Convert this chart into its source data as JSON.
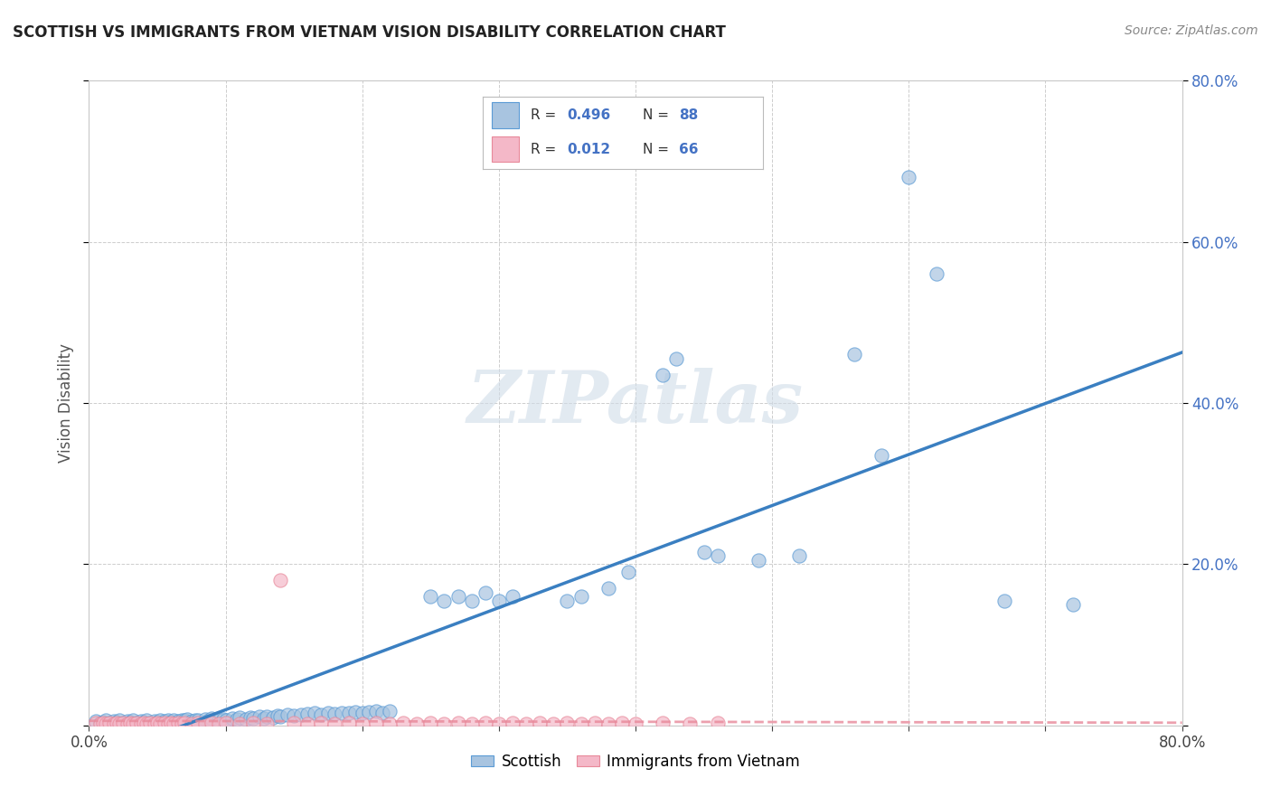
{
  "title": "SCOTTISH VS IMMIGRANTS FROM VIETNAM VISION DISABILITY CORRELATION CHART",
  "source": "Source: ZipAtlas.com",
  "ylabel": "Vision Disability",
  "legend_label_1": "Scottish",
  "legend_label_2": "Immigrants from Vietnam",
  "r1_text": "0.496",
  "n1_text": "88",
  "r2_text": "0.012",
  "n2_text": "66",
  "xlim": [
    0.0,
    0.8
  ],
  "ylim": [
    0.0,
    0.8
  ],
  "color_scottish_fill": "#a8c4e0",
  "color_scottish_edge": "#5b9bd5",
  "color_vietnam_fill": "#f4b8c8",
  "color_vietnam_edge": "#e8899a",
  "color_trend_scottish": "#3a7fc1",
  "color_trend_vietnam": "#e8899a",
  "background_color": "#ffffff",
  "grid_color": "#c8c8c8",
  "watermark_color": "#d0dce8",
  "title_color": "#222222",
  "source_color": "#888888",
  "ylabel_color": "#555555",
  "tick_color": "#4472c4",
  "legend_text_color": "#333333",
  "legend_value_color": "#4472c4",
  "scottish_x": [
    0.005,
    0.008,
    0.01,
    0.012,
    0.015,
    0.018,
    0.02,
    0.022,
    0.025,
    0.028,
    0.03,
    0.032,
    0.035,
    0.038,
    0.04,
    0.042,
    0.045,
    0.048,
    0.05,
    0.052,
    0.055,
    0.058,
    0.06,
    0.062,
    0.065,
    0.068,
    0.07,
    0.072,
    0.075,
    0.078,
    0.08,
    0.085,
    0.088,
    0.09,
    0.095,
    0.098,
    0.1,
    0.105,
    0.108,
    0.11,
    0.115,
    0.118,
    0.12,
    0.125,
    0.128,
    0.13,
    0.135,
    0.138,
    0.14,
    0.145,
    0.15,
    0.155,
    0.16,
    0.165,
    0.17,
    0.175,
    0.18,
    0.185,
    0.19,
    0.195,
    0.2,
    0.205,
    0.21,
    0.215,
    0.22,
    0.25,
    0.26,
    0.27,
    0.28,
    0.29,
    0.3,
    0.31,
    0.35,
    0.36,
    0.38,
    0.395,
    0.42,
    0.43,
    0.45,
    0.46,
    0.49,
    0.52,
    0.56,
    0.58,
    0.6,
    0.62,
    0.67,
    0.72
  ],
  "scottish_y": [
    0.005,
    0.003,
    0.004,
    0.006,
    0.003,
    0.005,
    0.004,
    0.006,
    0.003,
    0.005,
    0.004,
    0.006,
    0.003,
    0.005,
    0.004,
    0.007,
    0.003,
    0.005,
    0.004,
    0.006,
    0.005,
    0.007,
    0.004,
    0.006,
    0.005,
    0.007,
    0.006,
    0.008,
    0.005,
    0.007,
    0.006,
    0.008,
    0.007,
    0.009,
    0.006,
    0.008,
    0.007,
    0.009,
    0.008,
    0.01,
    0.008,
    0.01,
    0.009,
    0.011,
    0.009,
    0.011,
    0.01,
    0.012,
    0.011,
    0.013,
    0.012,
    0.013,
    0.014,
    0.015,
    0.013,
    0.015,
    0.014,
    0.016,
    0.015,
    0.017,
    0.016,
    0.017,
    0.018,
    0.015,
    0.018,
    0.16,
    0.155,
    0.16,
    0.155,
    0.165,
    0.155,
    0.16,
    0.155,
    0.16,
    0.17,
    0.19,
    0.435,
    0.455,
    0.215,
    0.21,
    0.205,
    0.21,
    0.46,
    0.335,
    0.68,
    0.56,
    0.155,
    0.15
  ],
  "vietnam_x": [
    0.005,
    0.008,
    0.01,
    0.012,
    0.015,
    0.018,
    0.02,
    0.022,
    0.025,
    0.028,
    0.03,
    0.032,
    0.035,
    0.038,
    0.04,
    0.042,
    0.045,
    0.048,
    0.05,
    0.052,
    0.055,
    0.058,
    0.06,
    0.062,
    0.065,
    0.068,
    0.07,
    0.075,
    0.08,
    0.085,
    0.09,
    0.095,
    0.1,
    0.11,
    0.12,
    0.13,
    0.14,
    0.15,
    0.16,
    0.17,
    0.18,
    0.19,
    0.2,
    0.21,
    0.22,
    0.23,
    0.24,
    0.25,
    0.26,
    0.27,
    0.28,
    0.29,
    0.3,
    0.31,
    0.32,
    0.33,
    0.34,
    0.35,
    0.36,
    0.37,
    0.38,
    0.39,
    0.4,
    0.42,
    0.44,
    0.46
  ],
  "vietnam_y": [
    0.003,
    0.002,
    0.003,
    0.002,
    0.003,
    0.002,
    0.003,
    0.002,
    0.003,
    0.002,
    0.003,
    0.002,
    0.003,
    0.002,
    0.003,
    0.002,
    0.003,
    0.002,
    0.003,
    0.002,
    0.003,
    0.002,
    0.003,
    0.002,
    0.003,
    0.002,
    0.003,
    0.002,
    0.003,
    0.002,
    0.003,
    0.002,
    0.003,
    0.002,
    0.003,
    0.002,
    0.18,
    0.003,
    0.002,
    0.003,
    0.002,
    0.003,
    0.002,
    0.003,
    0.002,
    0.003,
    0.002,
    0.003,
    0.002,
    0.003,
    0.002,
    0.003,
    0.002,
    0.003,
    0.002,
    0.003,
    0.002,
    0.003,
    0.002,
    0.003,
    0.002,
    0.003,
    0.002,
    0.003,
    0.002,
    0.003
  ]
}
